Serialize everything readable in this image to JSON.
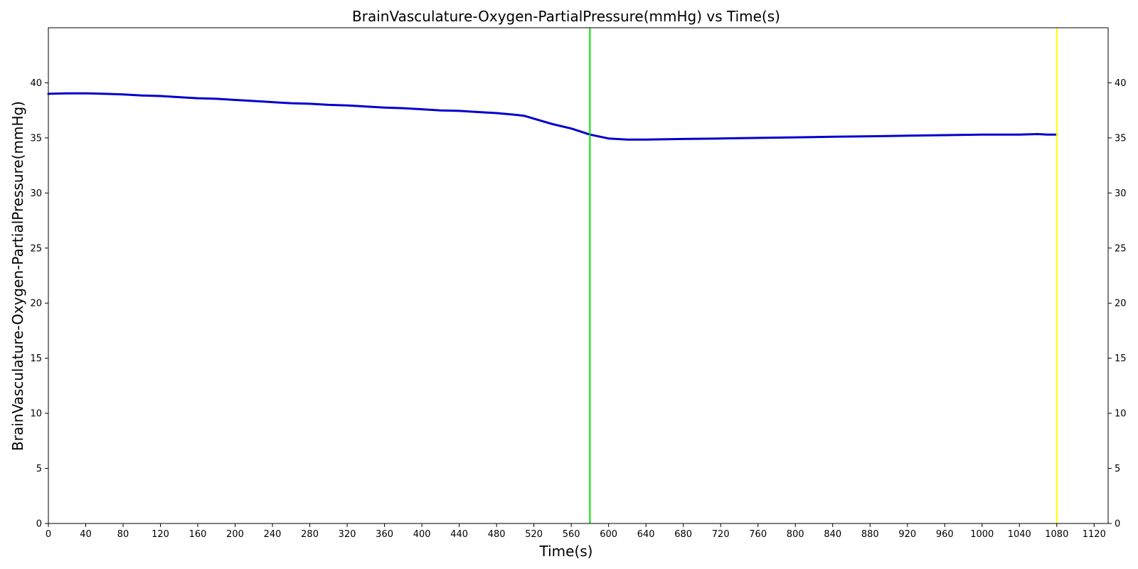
{
  "chart_data": {
    "type": "line",
    "title": "BrainVasculature-Oxygen-PartialPressure(mmHg) vs Time(s)",
    "xlabel": "Time(s)",
    "ylabel": "BrainVasculature-Oxygen-PartialPressure(mmHg)",
    "xlim": [
      0,
      1135
    ],
    "ylim": [
      0,
      45
    ],
    "x_ticks": [
      0,
      40,
      80,
      120,
      160,
      200,
      240,
      280,
      320,
      360,
      400,
      440,
      480,
      520,
      560,
      600,
      640,
      680,
      720,
      760,
      800,
      840,
      880,
      920,
      960,
      1000,
      1040,
      1080,
      1120
    ],
    "y_ticks": [
      0,
      5,
      10,
      15,
      20,
      25,
      30,
      35,
      40
    ],
    "right_y_axis": true,
    "grid": false,
    "series": [
      {
        "color": "#0000cc",
        "x": [
          0,
          20,
          40,
          60,
          80,
          100,
          120,
          140,
          160,
          180,
          200,
          220,
          240,
          260,
          280,
          300,
          320,
          340,
          360,
          380,
          400,
          420,
          440,
          460,
          480,
          500,
          510,
          520,
          540,
          560,
          580,
          600,
          620,
          640,
          680,
          720,
          760,
          800,
          840,
          880,
          920,
          960,
          1000,
          1040,
          1060,
          1070,
          1080
        ],
        "y": [
          39.0,
          39.05,
          39.05,
          39.0,
          38.95,
          38.85,
          38.8,
          38.7,
          38.6,
          38.55,
          38.45,
          38.35,
          38.25,
          38.15,
          38.1,
          38.0,
          37.95,
          37.85,
          37.75,
          37.7,
          37.6,
          37.5,
          37.45,
          37.35,
          37.25,
          37.1,
          37.0,
          36.75,
          36.25,
          35.85,
          35.3,
          34.95,
          34.85,
          34.85,
          34.9,
          34.95,
          35.0,
          35.05,
          35.1,
          35.15,
          35.2,
          35.25,
          35.3,
          35.3,
          35.35,
          35.3,
          35.3
        ]
      }
    ],
    "vertical_lines": [
      {
        "x": 580,
        "color": "#00e000"
      },
      {
        "x": 1080,
        "color": "#ffff00"
      }
    ]
  }
}
